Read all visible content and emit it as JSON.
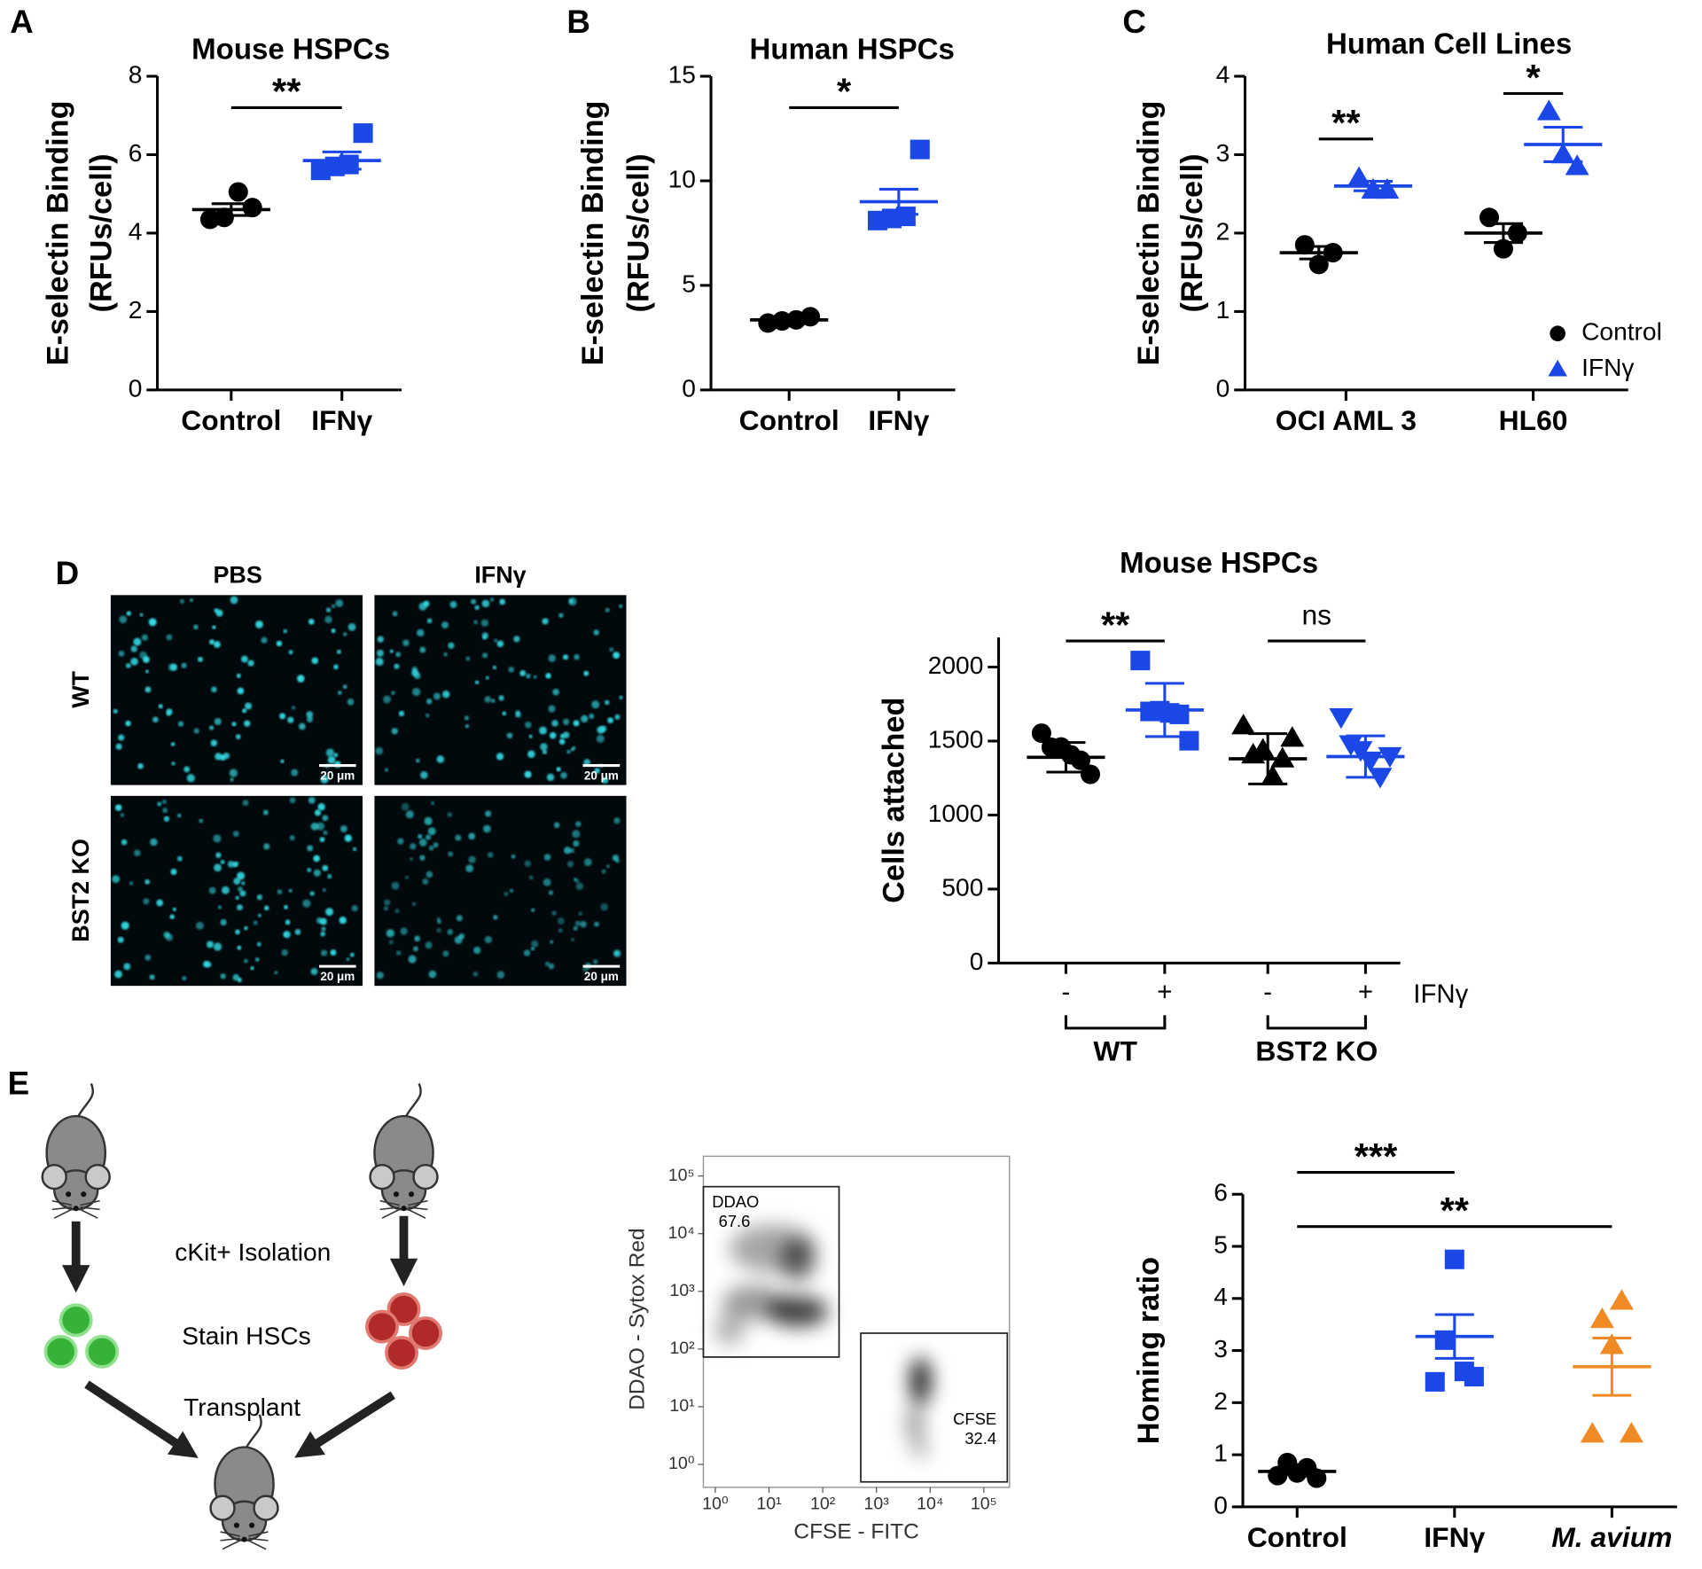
{
  "panel_labels": [
    "A",
    "B",
    "C",
    "D",
    "E"
  ],
  "chart_data": [
    {
      "type": "dot",
      "title": "Mouse HSPCs",
      "y_label": [
        "E-selectin Binding",
        "(RFUs/cell)"
      ],
      "categories": [
        "Control",
        "IFNγ"
      ],
      "ylim": [
        0,
        8
      ],
      "yticks": [
        0,
        2,
        4,
        6,
        8
      ],
      "groups": [
        {
          "color": "#000000",
          "marker": "circle",
          "points": [
            4.35,
            4.4,
            5.05,
            4.65
          ],
          "mean": 4.6,
          "err": 0.15
        },
        {
          "color": "#1a47e6",
          "marker": "square",
          "points": [
            5.6,
            5.7,
            5.75,
            6.55
          ],
          "mean": 5.85,
          "err": 0.22
        }
      ],
      "annotations": [
        {
          "text": "**",
          "y": 7.2,
          "groups": [
            0,
            1
          ]
        }
      ]
    },
    {
      "type": "dot",
      "title": "Human HSPCs",
      "y_label": [
        "E-selectin Binding",
        "(RFUs/cell)"
      ],
      "categories": [
        "Control",
        "IFNγ"
      ],
      "ylim": [
        0,
        15
      ],
      "yticks": [
        0,
        5,
        10,
        15
      ],
      "groups": [
        {
          "color": "#000000",
          "marker": "circle",
          "points": [
            3.2,
            3.3,
            3.35,
            3.5
          ],
          "mean": 3.35,
          "err": 0.08
        },
        {
          "color": "#1a47e6",
          "marker": "square",
          "points": [
            8.1,
            8.2,
            8.3,
            11.5
          ],
          "mean": 9.0,
          "err": 0.6
        }
      ],
      "annotations": [
        {
          "text": "*",
          "y": 13.5,
          "groups": [
            0,
            1
          ]
        }
      ]
    },
    {
      "type": "dot",
      "title": "Human Cell Lines",
      "y_label": [
        "E-selectin Binding",
        "(RFUs/cell)"
      ],
      "categories": [
        "OCI AML 3",
        "HL60"
      ],
      "ylim": [
        0,
        4
      ],
      "yticks": [
        0,
        1,
        2,
        3,
        4
      ],
      "groups": [
        {
          "color": "#000000",
          "marker": "circle",
          "points": [
            1.85,
            1.6,
            1.75
          ],
          "mean": 1.75,
          "err": 0.08
        },
        {
          "color": "#1a47e6",
          "marker": "triangle",
          "points": [
            2.7,
            2.55,
            2.55
          ],
          "mean": 2.6,
          "err": 0.06
        },
        {
          "color": "#000000",
          "marker": "circle",
          "points": [
            2.2,
            1.8,
            2.0
          ],
          "mean": 2.0,
          "err": 0.12
        },
        {
          "color": "#1a47e6",
          "marker": "triangle",
          "points": [
            3.55,
            3.0,
            2.85
          ],
          "mean": 3.13,
          "err": 0.22
        }
      ],
      "annotations": [
        {
          "text": "**",
          "y": 3.2,
          "groups": [
            0,
            1
          ]
        },
        {
          "text": "*",
          "y": 3.78,
          "groups": [
            2,
            3
          ]
        }
      ],
      "legend": [
        {
          "name": "Control",
          "color": "#000000",
          "marker": "circle"
        },
        {
          "name": "IFNγ",
          "color": "#1a47e6",
          "marker": "triangle"
        }
      ]
    },
    {
      "type": "dot",
      "title": "Mouse HSPCs",
      "y_label": "Cells attached",
      "categories": [
        "WT",
        "BST2 KO"
      ],
      "group_labels": [
        "-",
        "+",
        "-",
        "+"
      ],
      "group_axis_label": "IFNγ",
      "ylim": [
        0,
        2200
      ],
      "yticks": [
        0,
        500,
        1000,
        1500,
        2000
      ],
      "groups": [
        {
          "color": "#000000",
          "marker": "circle",
          "points": [
            1553,
            1458,
            1460,
            1407,
            1370,
            1275
          ],
          "mean": 1390,
          "err": 100
        },
        {
          "color": "#1a47e6",
          "marker": "square",
          "points": [
            2044,
            1700,
            1705,
            1690,
            1680,
            1502
          ],
          "mean": 1710,
          "err": 180
        },
        {
          "color": "#000000",
          "marker": "triangle",
          "points": [
            1604,
            1407,
            1440,
            1260,
            1380,
            1520
          ],
          "mean": 1380,
          "err": 170
        },
        {
          "color": "#1a47e6",
          "marker": "triangle-down",
          "points": [
            1663,
            1480,
            1440,
            1370,
            1260,
            1400
          ],
          "mean": 1395,
          "err": 140
        }
      ],
      "annotations": [
        {
          "text": "**",
          "y": 2176,
          "groups": [
            0,
            1
          ]
        },
        {
          "text": "ns",
          "y": 2176,
          "groups": [
            2,
            3
          ]
        }
      ]
    },
    {
      "type": "dot",
      "y_label": "Homing ratio",
      "categories": [
        "Control",
        "IFNγ",
        "M. avium"
      ],
      "ylim": [
        0,
        6
      ],
      "yticks": [
        0,
        1,
        2,
        3,
        4,
        5,
        6
      ],
      "groups": [
        {
          "color": "#000000",
          "marker": "circle",
          "points": [
            0.6,
            0.85,
            0.65,
            0.75,
            0.55
          ],
          "mean": 0.68,
          "err": 0.06
        },
        {
          "color": "#1a47e6",
          "marker": "square",
          "points": [
            2.4,
            3.2,
            4.75,
            2.6,
            2.5
          ],
          "mean": 3.27,
          "err": 0.42
        },
        {
          "color": "#f08a24",
          "marker": "triangle",
          "points": [
            1.4,
            3.6,
            3.1,
            3.95,
            1.4
          ],
          "mean": 2.69,
          "err": 0.55
        }
      ],
      "annotations": [
        {
          "text": "***",
          "y": 6.42,
          "groups": [
            0,
            1
          ]
        },
        {
          "text": "**",
          "y": 5.38,
          "groups": [
            0,
            2
          ]
        }
      ]
    },
    {
      "type": "flow",
      "x_label": "CFSE - FITC",
      "y_label": "DDAO - Sytox Red",
      "log": true,
      "xlim": [
        0.6,
        300000
      ],
      "ylim": [
        0.4,
        220000
      ],
      "xticks": [
        {
          "value": 1,
          "label": "10⁰"
        },
        {
          "value": 10,
          "label": "10¹"
        },
        {
          "value": 100,
          "label": "10²"
        },
        {
          "value": 1000,
          "label": "10³"
        },
        {
          "value": 10000,
          "label": "10⁴"
        },
        {
          "value": 100000,
          "label": "10⁵"
        }
      ],
      "yticks": [
        {
          "value": 1,
          "label": "10⁰"
        },
        {
          "value": 10,
          "label": "10¹"
        },
        {
          "value": 100,
          "label": "10²"
        },
        {
          "value": 1000,
          "label": "10³"
        },
        {
          "value": 10000,
          "label": "10⁴"
        },
        {
          "value": 100000,
          "label": "10⁵"
        }
      ],
      "gates": [
        {
          "name": "DDAO",
          "value": 67.6
        },
        {
          "name": "CFSE",
          "value": 32.4
        }
      ]
    }
  ],
  "micrographs": {
    "columns": [
      "PBS",
      "IFNγ"
    ],
    "rows": [
      "WT",
      "BST2 KO"
    ],
    "scale_bar": "20 μm"
  },
  "diagram": {
    "steps": [
      "cKit+ Isolation",
      "Stain HSCs",
      "Transplant"
    ]
  }
}
